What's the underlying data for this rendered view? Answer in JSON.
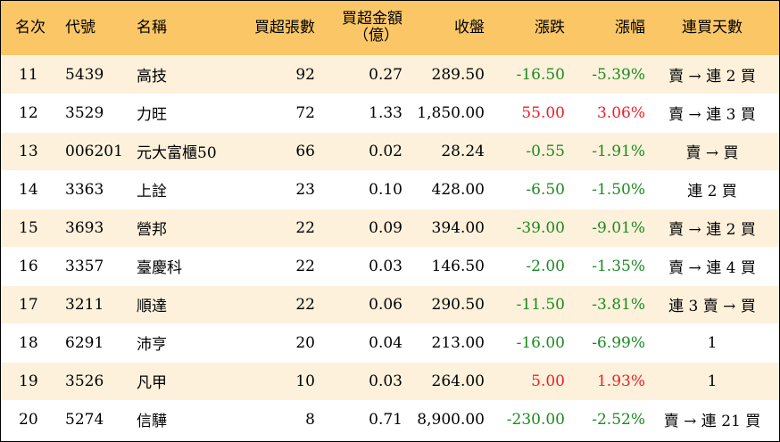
{
  "headers": {
    "rank": "名次",
    "code": "代號",
    "name": "名稱",
    "net_buy_lots": "買超張數",
    "net_buy_amount_line1": "買超金額",
    "net_buy_amount_line2": "（億）",
    "close": "收盤",
    "change": "漲跌",
    "change_pct": "漲幅",
    "consecutive_days": "連買天數"
  },
  "colors": {
    "header_bg": "#fbc766",
    "stripe_bg": "#fdf1db",
    "up": "#e8212b",
    "down": "#1d8a22"
  },
  "rows": [
    {
      "rank": "11",
      "code": "5439",
      "name": "高技",
      "lots": "92",
      "amount": "0.27",
      "close": "289.50",
      "change": "-16.50",
      "pct": "-5.39%",
      "dir": "down",
      "days": "賣 → 連 2 買"
    },
    {
      "rank": "12",
      "code": "3529",
      "name": "力旺",
      "lots": "72",
      "amount": "1.33",
      "close": "1,850.00",
      "change": "55.00",
      "pct": "3.06%",
      "dir": "up",
      "days": "賣 → 連 3 買"
    },
    {
      "rank": "13",
      "code": "006201",
      "name": "元大富櫃50",
      "lots": "66",
      "amount": "0.02",
      "close": "28.24",
      "change": "-0.55",
      "pct": "-1.91%",
      "dir": "down",
      "days": "賣 → 買"
    },
    {
      "rank": "14",
      "code": "3363",
      "name": "上詮",
      "lots": "23",
      "amount": "0.10",
      "close": "428.00",
      "change": "-6.50",
      "pct": "-1.50%",
      "dir": "down",
      "days": "連 2 買"
    },
    {
      "rank": "15",
      "code": "3693",
      "name": "營邦",
      "lots": "22",
      "amount": "0.09",
      "close": "394.00",
      "change": "-39.00",
      "pct": "-9.01%",
      "dir": "down",
      "days": "賣 → 連 2 買"
    },
    {
      "rank": "16",
      "code": "3357",
      "name": "臺慶科",
      "lots": "22",
      "amount": "0.03",
      "close": "146.50",
      "change": "-2.00",
      "pct": "-1.35%",
      "dir": "down",
      "days": "賣 → 連 4 買"
    },
    {
      "rank": "17",
      "code": "3211",
      "name": "順達",
      "lots": "22",
      "amount": "0.06",
      "close": "290.50",
      "change": "-11.50",
      "pct": "-3.81%",
      "dir": "down",
      "days": "連 3 賣 → 買"
    },
    {
      "rank": "18",
      "code": "6291",
      "name": "沛亨",
      "lots": "20",
      "amount": "0.04",
      "close": "213.00",
      "change": "-16.00",
      "pct": "-6.99%",
      "dir": "down",
      "days": "1"
    },
    {
      "rank": "19",
      "code": "3526",
      "name": "凡甲",
      "lots": "10",
      "amount": "0.03",
      "close": "264.00",
      "change": "5.00",
      "pct": "1.93%",
      "dir": "up",
      "days": "1"
    },
    {
      "rank": "20",
      "code": "5274",
      "name": "信驊",
      "lots": "8",
      "amount": "0.71",
      "close": "8,900.00",
      "change": "-230.00",
      "pct": "-2.52%",
      "dir": "down",
      "days": "賣 → 連 21 買"
    }
  ]
}
